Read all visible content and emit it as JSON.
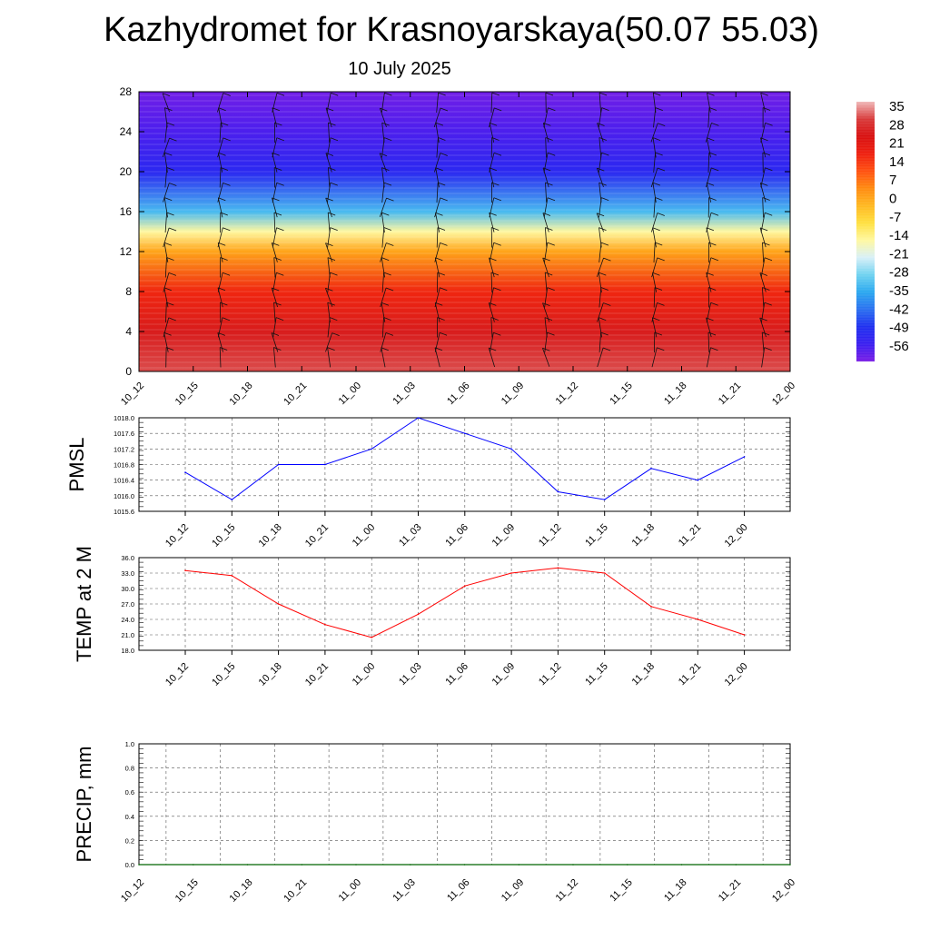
{
  "header": {
    "title": "Kazhydromet for Krasnoyarskaya(50.07 55.03)",
    "subtitle": "10 July 2025"
  },
  "colors": {
    "pmsl_line": "#0000ff",
    "temp_line": "#ff0000",
    "precip_line": "#006400",
    "palette": [
      "#7a1ee6",
      "#3a1ff0",
      "#1f2ff0",
      "#2a6ff0",
      "#2aa8f0",
      "#6fd2f0",
      "#d8f0f8",
      "#fff8a0",
      "#ffe040",
      "#ffb820",
      "#ff8a10",
      "#ff5010",
      "#ee1f10",
      "#d81010",
      "#d83a3a",
      "#f0b8b8"
    ]
  },
  "chart_data": [
    {
      "type": "heatmap",
      "name": "temperature-height section with wind barbs",
      "x": [
        "10_12",
        "10_15",
        "10_18",
        "10_21",
        "11_00",
        "11_03",
        "11_06",
        "11_09",
        "11_12",
        "11_15",
        "11_18",
        "11_21",
        "12_00"
      ],
      "ylim": [
        0,
        28
      ],
      "yticks": [
        0,
        4,
        8,
        12,
        16,
        20,
        24,
        28
      ],
      "colorbar": {
        "labels": [
          "35",
          "28",
          "21",
          "14",
          "7",
          "0",
          "-7",
          "-14",
          "-21",
          "-28",
          "-35",
          "-42",
          "-49",
          "-56"
        ],
        "range": [
          -63,
          42
        ]
      },
      "profile": [
        {
          "y": 0,
          "value": 36
        },
        {
          "y": 4,
          "value": 30
        },
        {
          "y": 8,
          "value": 20
        },
        {
          "y": 12,
          "value": 3
        },
        {
          "y": 14,
          "value": -14
        },
        {
          "y": 16,
          "value": -32
        },
        {
          "y": 20,
          "value": -52
        },
        {
          "y": 24,
          "value": -58
        },
        {
          "y": 28,
          "value": -62
        }
      ],
      "grid": false,
      "barbs": true
    },
    {
      "type": "line",
      "ylabel": "PMSL",
      "x": [
        "10_12",
        "10_15",
        "10_18",
        "10_21",
        "11_00",
        "11_03",
        "11_06",
        "11_09",
        "11_12",
        "11_15",
        "11_18",
        "11_21",
        "12_00"
      ],
      "values": [
        1016.6,
        1015.9,
        1016.8,
        1016.8,
        1017.2,
        1018.0,
        1017.6,
        1017.2,
        1016.1,
        1015.9,
        1016.7,
        1016.4,
        1017.0
      ],
      "ylim": [
        1015.6,
        1018.0
      ],
      "yticks": [
        "1015.6",
        "1016.0",
        "1016.4",
        "1016.8",
        "1017.2",
        "1017.6",
        "1018.0"
      ],
      "grid": true
    },
    {
      "type": "line",
      "ylabel": "TEMP at 2 M",
      "x": [
        "10_12",
        "10_15",
        "10_18",
        "10_21",
        "11_00",
        "11_03",
        "11_06",
        "11_09",
        "11_12",
        "11_15",
        "11_18",
        "11_21",
        "12_00"
      ],
      "values": [
        33.5,
        32.5,
        27.0,
        23.0,
        20.5,
        25.0,
        30.5,
        33.0,
        34.0,
        33.0,
        26.5,
        24.0,
        21.0
      ],
      "ylim": [
        18.0,
        36.0
      ],
      "yticks": [
        "18.0",
        "21.0",
        "24.0",
        "27.0",
        "30.0",
        "33.0",
        "36.0"
      ],
      "grid": true
    },
    {
      "type": "line",
      "ylabel": "PRECIP, mm",
      "x": [
        "10_12",
        "10_15",
        "10_18",
        "10_21",
        "11_00",
        "11_03",
        "11_06",
        "11_09",
        "11_12",
        "11_15",
        "11_18",
        "11_21",
        "12_00"
      ],
      "values": [
        0,
        0,
        0,
        0,
        0,
        0,
        0,
        0,
        0,
        0,
        0,
        0,
        0
      ],
      "ylim": [
        0.0,
        1.0
      ],
      "yticks": [
        "0.0",
        "0.2",
        "0.4",
        "0.6",
        "0.8",
        "1.0"
      ],
      "grid": true
    }
  ]
}
